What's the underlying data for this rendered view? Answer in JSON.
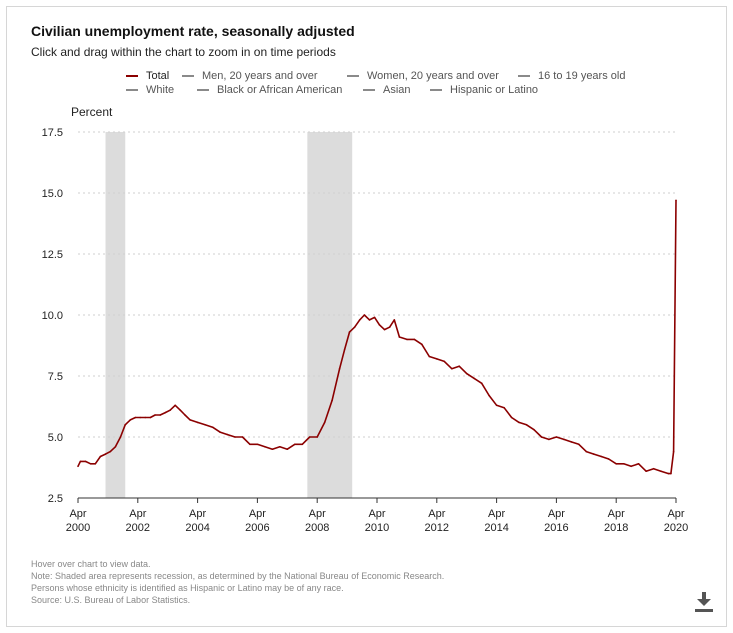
{
  "header": {
    "title": "Civilian unemployment rate, seasonally adjusted",
    "subtitle": "Click and drag within the chart to zoom in on time periods"
  },
  "legend": {
    "items": [
      {
        "label": "Total",
        "active": true
      },
      {
        "label": "Men, 20 years and over",
        "active": false
      },
      {
        "label": "Women, 20 years and over",
        "active": false
      },
      {
        "label": "16 to 19 years old",
        "active": false
      },
      {
        "label": "White",
        "active": false
      },
      {
        "label": "Black or African American",
        "active": false
      },
      {
        "label": "Asian",
        "active": false
      },
      {
        "label": "Hispanic or Latino",
        "active": false
      }
    ]
  },
  "footnotes": {
    "hover": "Hover over chart to view data.",
    "note": "Note: Shaded area represents recession, as determined by the National Bureau of Economic Research.",
    "ethnicity": "Persons whose ethnicity is identified as Hispanic or Latino may be of any race.",
    "source": "Source: U.S. Bureau of Labor Statistics."
  },
  "colors": {
    "series": "#8b0000",
    "recession": "#dcdcdc",
    "grid": "#cfcfcf",
    "axis": "#333333"
  },
  "download": {
    "icon": "download-icon"
  },
  "chart_data": {
    "type": "line",
    "title": "Civilian unemployment rate, seasonally adjusted",
    "ylabel": "Percent",
    "xlabel": "",
    "ylim": [
      2.5,
      17.5
    ],
    "yticks": [
      "2.5",
      "5.0",
      "7.5",
      "10.0",
      "12.5",
      "15.0",
      "17.5"
    ],
    "yticks_values": [
      2.5,
      5.0,
      7.5,
      10.0,
      12.5,
      15.0,
      17.5
    ],
    "xlim": [
      2000.25,
      2020.25
    ],
    "xticks": [
      {
        "month": "Apr",
        "year": "2000",
        "value": 2000.25
      },
      {
        "month": "Apr",
        "year": "2002",
        "value": 2002.25
      },
      {
        "month": "Apr",
        "year": "2004",
        "value": 2004.25
      },
      {
        "month": "Apr",
        "year": "2006",
        "value": 2006.25
      },
      {
        "month": "Apr",
        "year": "2008",
        "value": 2008.25
      },
      {
        "month": "Apr",
        "year": "2010",
        "value": 2010.25
      },
      {
        "month": "Apr",
        "year": "2012",
        "value": 2012.25
      },
      {
        "month": "Apr",
        "year": "2014",
        "value": 2014.25
      },
      {
        "month": "Apr",
        "year": "2016",
        "value": 2016.25
      },
      {
        "month": "Apr",
        "year": "2018",
        "value": 2018.25
      },
      {
        "month": "Apr",
        "year": "2020",
        "value": 2020.25
      }
    ],
    "recessions": [
      {
        "start": 2001.17,
        "end": 2001.83
      },
      {
        "start": 2007.92,
        "end": 2009.42
      }
    ],
    "grid": true,
    "series": [
      {
        "name": "Total",
        "x": [
          2000.25,
          2000.33,
          2000.5,
          2000.67,
          2000.83,
          2001.0,
          2001.17,
          2001.33,
          2001.5,
          2001.67,
          2001.83,
          2002.0,
          2002.17,
          2002.33,
          2002.5,
          2002.67,
          2002.83,
          2003.0,
          2003.17,
          2003.33,
          2003.5,
          2003.67,
          2003.83,
          2004.0,
          2004.25,
          2004.5,
          2004.75,
          2005.0,
          2005.25,
          2005.5,
          2005.75,
          2006.0,
          2006.25,
          2006.5,
          2006.75,
          2007.0,
          2007.25,
          2007.5,
          2007.75,
          2008.0,
          2008.25,
          2008.5,
          2008.75,
          2009.0,
          2009.17,
          2009.33,
          2009.5,
          2009.67,
          2009.83,
          2010.0,
          2010.17,
          2010.33,
          2010.5,
          2010.67,
          2010.83,
          2011.0,
          2011.25,
          2011.5,
          2011.75,
          2012.0,
          2012.25,
          2012.5,
          2012.75,
          2013.0,
          2013.25,
          2013.5,
          2013.75,
          2014.0,
          2014.25,
          2014.5,
          2014.75,
          2015.0,
          2015.25,
          2015.5,
          2015.75,
          2016.0,
          2016.25,
          2016.5,
          2016.75,
          2017.0,
          2017.25,
          2017.5,
          2017.75,
          2018.0,
          2018.25,
          2018.5,
          2018.75,
          2019.0,
          2019.25,
          2019.5,
          2019.75,
          2020.0,
          2020.08,
          2020.17,
          2020.25
        ],
        "values": [
          3.8,
          4.0,
          4.0,
          3.9,
          3.9,
          4.2,
          4.3,
          4.4,
          4.6,
          5.0,
          5.5,
          5.7,
          5.8,
          5.8,
          5.8,
          5.8,
          5.9,
          5.9,
          6.0,
          6.1,
          6.3,
          6.1,
          5.9,
          5.7,
          5.6,
          5.5,
          5.4,
          5.2,
          5.1,
          5.0,
          5.0,
          4.7,
          4.7,
          4.6,
          4.5,
          4.6,
          4.5,
          4.7,
          4.7,
          5.0,
          5.0,
          5.6,
          6.5,
          7.8,
          8.6,
          9.3,
          9.5,
          9.8,
          10.0,
          9.8,
          9.9,
          9.6,
          9.4,
          9.5,
          9.8,
          9.1,
          9.0,
          9.0,
          8.8,
          8.3,
          8.2,
          8.1,
          7.8,
          7.9,
          7.6,
          7.4,
          7.2,
          6.7,
          6.3,
          6.2,
          5.8,
          5.6,
          5.5,
          5.3,
          5.0,
          4.9,
          5.0,
          4.9,
          4.8,
          4.7,
          4.4,
          4.3,
          4.2,
          4.1,
          3.9,
          3.9,
          3.8,
          3.9,
          3.6,
          3.7,
          3.6,
          3.5,
          3.5,
          4.4,
          14.7
        ]
      }
    ]
  }
}
